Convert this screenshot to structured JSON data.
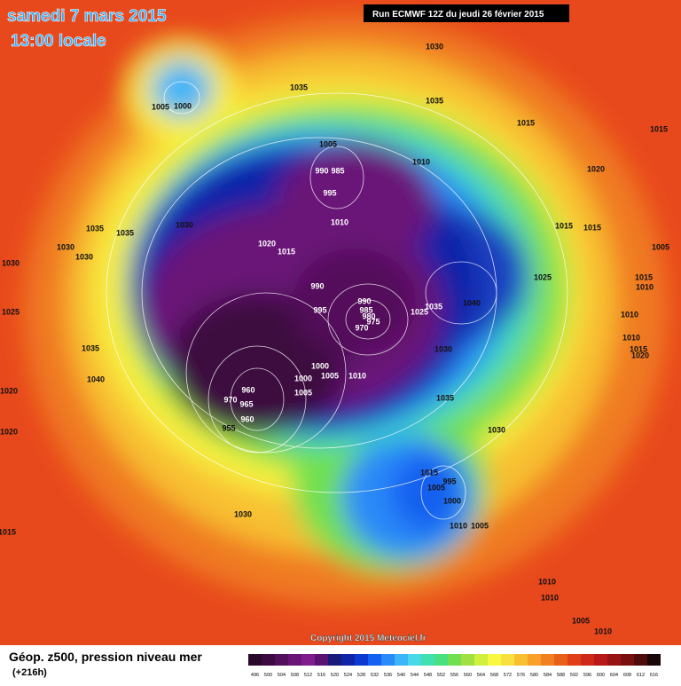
{
  "header": {
    "date": "samedi 7 mars 2015",
    "time": "13:00 locale",
    "run": "Run ECMWF 12Z du jeudi 26 février 2015"
  },
  "map": {
    "copyright": "Copyright 2015 Meteociel.fr",
    "isobar_labels": [
      1030,
      1035,
      1005,
      1000,
      1035,
      1005,
      1010,
      990,
      985,
      995,
      1010,
      1020,
      1015,
      1030,
      1035,
      1035,
      1030,
      1030,
      1030,
      1025,
      990,
      995,
      990,
      985,
      980,
      975,
      970,
      1025,
      1035,
      1040,
      1030,
      1035,
      1030,
      1000,
      1005,
      1000,
      1005,
      1010,
      960,
      970,
      965,
      960,
      955,
      1015,
      1005,
      995,
      1000,
      1010,
      1005,
      1030,
      1010,
      1010,
      1005,
      1020,
      1015,
      1015,
      1025,
      1005,
      1010,
      1010,
      1015,
      1010,
      1015,
      1015,
      1015,
      1020,
      1020,
      1020,
      1015,
      1035,
      1040,
      1010
    ]
  },
  "legend": {
    "label": "Géop. z500, pression niveau mer",
    "lead": "(+216h)",
    "scale": [
      496,
      500,
      504,
      508,
      512,
      516,
      520,
      524,
      528,
      532,
      536,
      540,
      544,
      548,
      552,
      556,
      560,
      564,
      568,
      572,
      576,
      580,
      584,
      588,
      592,
      596,
      600,
      604,
      608,
      612,
      616
    ],
    "colors": [
      "#2a0a2a",
      "#3c0c40",
      "#520f5a",
      "#6a1478",
      "#801c8e",
      "#5a1470",
      "#1a1a7a",
      "#1024a8",
      "#0a3ad0",
      "#1460f0",
      "#2a8af8",
      "#3cb4f8",
      "#48d8e8",
      "#40e0b0",
      "#48e080",
      "#70e050",
      "#a0e040",
      "#d0f040",
      "#f8f840",
      "#f8e040",
      "#f8c030",
      "#f8a028",
      "#f08020",
      "#e86018",
      "#e04018",
      "#d02818",
      "#b81818",
      "#981414",
      "#781010",
      "#500c0c",
      "#180808"
    ]
  }
}
